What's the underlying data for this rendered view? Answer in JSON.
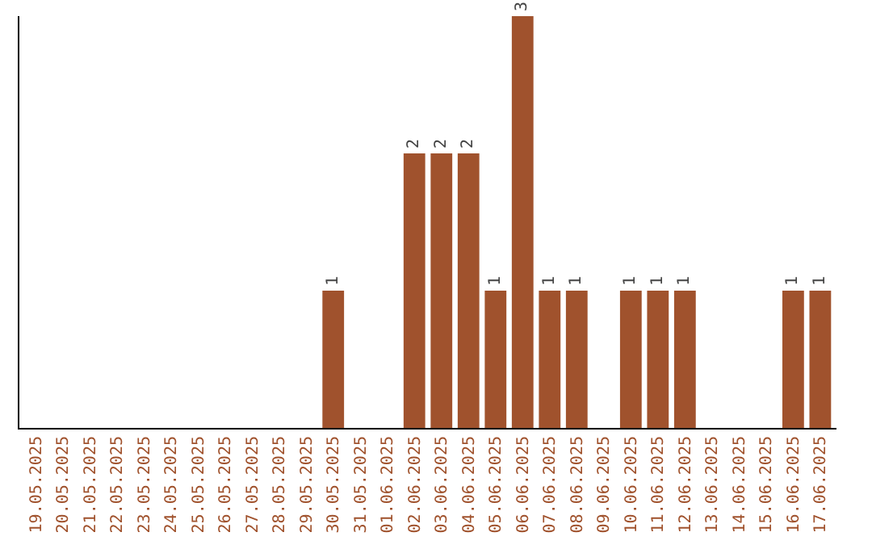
{
  "chart_data": {
    "type": "bar",
    "categories": [
      "19.05.2025",
      "20.05.2025",
      "21.05.2025",
      "22.05.2025",
      "23.05.2025",
      "24.05.2025",
      "25.05.2025",
      "26.05.2025",
      "27.05.2025",
      "28.05.2025",
      "29.05.2025",
      "30.05.2025",
      "31.05.2025",
      "01.06.2025",
      "02.06.2025",
      "03.06.2025",
      "04.06.2025",
      "05.06.2025",
      "06.06.2025",
      "07.06.2025",
      "08.06.2025",
      "09.06.2025",
      "10.06.2025",
      "11.06.2025",
      "12.06.2025",
      "13.06.2025",
      "14.06.2025",
      "15.06.2025",
      "16.06.2025",
      "17.06.2025"
    ],
    "values": [
      0,
      0,
      0,
      0,
      0,
      0,
      0,
      0,
      0,
      0,
      0,
      1,
      0,
      0,
      2,
      2,
      2,
      1,
      3,
      1,
      1,
      0,
      1,
      1,
      1,
      0,
      0,
      0,
      1,
      1
    ],
    "value_labels": [
      null,
      null,
      null,
      null,
      null,
      null,
      null,
      null,
      null,
      null,
      null,
      "1",
      null,
      null,
      "2",
      "2",
      "2",
      "1",
      "3",
      "1",
      "1",
      null,
      "1",
      "1",
      "1",
      null,
      null,
      null,
      "1",
      "1"
    ],
    "color": "#a0522d",
    "ylim": [
      0,
      3
    ],
    "grid": false,
    "legend": false
  }
}
